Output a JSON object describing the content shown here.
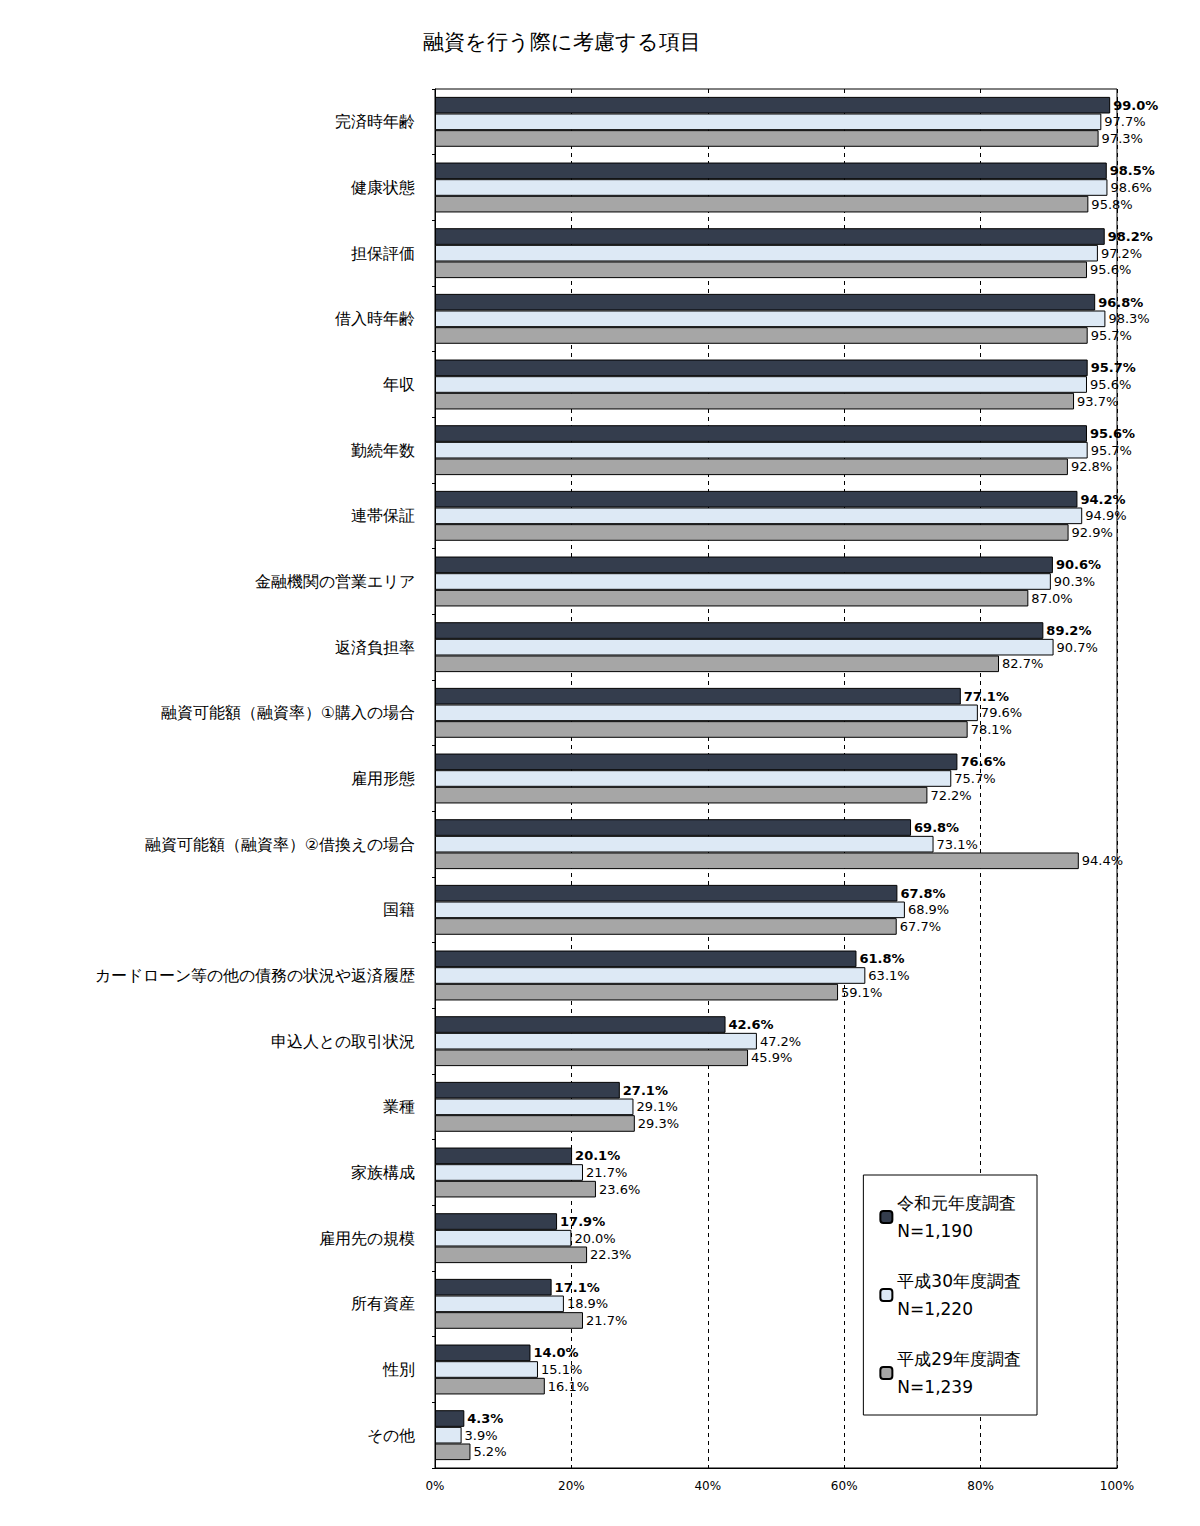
{
  "chart_data": {
    "type": "bar",
    "orientation": "horizontal",
    "title": "融資を行う際に考慮する項目",
    "categories": [
      "完済時年齢",
      "健康状態",
      "担保評価",
      "借入時年齢",
      "年収",
      "勤続年数",
      "連帯保証",
      "金融機関の営業エリア",
      "返済負担率",
      "融資可能額（融資率）①購入の場合",
      "雇用形態",
      "融資可能額（融資率）②借換えの場合",
      "国籍",
      "カードローン等の他の債務の状況や返済履歴",
      "申込人との取引状況",
      "業種",
      "家族構成",
      "雇用先の規模",
      "所有資産",
      "性別",
      "その他"
    ],
    "series": [
      {
        "name": "令和元年度調査\nN=1,190",
        "color": "#343d4d",
        "values": [
          99.0,
          98.5,
          98.2,
          96.8,
          95.7,
          95.6,
          94.2,
          90.6,
          89.2,
          77.1,
          76.6,
          69.8,
          67.8,
          61.8,
          42.6,
          27.1,
          20.1,
          17.9,
          17.1,
          14.0,
          4.3
        ],
        "value_labels": [
          "99.0%",
          "98.5%",
          "98.2%",
          "96.8%",
          "95.7%",
          "95.6%",
          "94.2%",
          "90.6%",
          "89.2%",
          "77.1%",
          "76.6%",
          "69.8%",
          "67.8%",
          "61.8%",
          "42.6%",
          "27.1%",
          "20.1%",
          "17.9%",
          "17.1%",
          "14.0%",
          "4.3%"
        ]
      },
      {
        "name": "平成30年度調査\nN=1,220",
        "color": "#dde9f5",
        "values": [
          97.7,
          98.6,
          97.2,
          98.3,
          95.6,
          95.7,
          94.9,
          90.3,
          90.7,
          79.6,
          75.7,
          73.1,
          68.9,
          63.1,
          47.2,
          29.1,
          21.7,
          20.0,
          18.9,
          15.1,
          3.9
        ],
        "value_labels": [
          "97.7%",
          "98.6%",
          "97.2%",
          "98.3%",
          "95.6%",
          "95.7%",
          "94.9%",
          "90.3%",
          "90.7%",
          "79.6%",
          "75.7%",
          "73.1%",
          "68.9%",
          "63.1%",
          "47.2%",
          "29.1%",
          "21.7%",
          "20.0%",
          "18.9%",
          "15.1%",
          "3.9%"
        ]
      },
      {
        "name": "平成29年度調査\nN=1,239",
        "color": "#a6a6a6",
        "values": [
          97.3,
          95.8,
          95.6,
          95.7,
          93.7,
          92.8,
          92.9,
          87.0,
          82.7,
          78.1,
          72.2,
          94.4,
          67.7,
          59.1,
          45.9,
          29.3,
          23.6,
          22.3,
          21.7,
          16.1,
          5.2
        ],
        "value_labels": [
          "97.3%",
          "95.8%",
          "95.6%",
          "95.7%",
          "93.7%",
          "92.8%",
          "92.9%",
          "87.0%",
          "82.7%",
          "78.1%",
          "72.2%",
          "94.4%",
          "67.7%",
          "59.1%",
          "45.9%",
          "29.3%",
          "23.6%",
          "22.3%",
          "21.7%",
          "16.1%",
          "5.2%"
        ]
      }
    ],
    "xlim": [
      0,
      100
    ],
    "xticks": [
      {
        "value": 0,
        "label": "0%"
      },
      {
        "value": 20,
        "label": "20%"
      },
      {
        "value": 40,
        "label": "40%"
      },
      {
        "value": 60,
        "label": "60%"
      },
      {
        "value": 80,
        "label": "80%"
      },
      {
        "value": 100,
        "label": "100%"
      }
    ],
    "grid": true,
    "legend": "lower right",
    "data_labels": true
  }
}
